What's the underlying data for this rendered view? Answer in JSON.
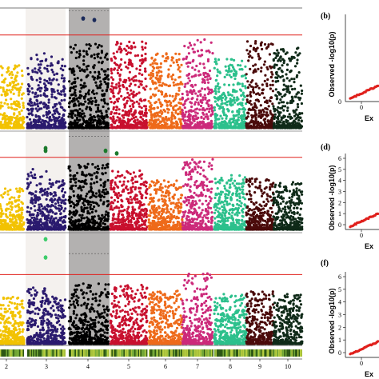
{
  "chart_data": [
    {
      "type": "scatter",
      "subtype": "manhattan",
      "panel": "top",
      "chromosomes": [
        "1",
        "2",
        "3",
        "4",
        "5",
        "6",
        "7",
        "8",
        "9",
        "10"
      ],
      "highlighted_chromosomes": {
        "3": "light",
        "4": "dark"
      },
      "significance_line_y": 6.2,
      "ylim": [
        0,
        8.0
      ],
      "series": [
        {
          "chromosome": "1",
          "color": "#f2c200",
          "peak": 4.2
        },
        {
          "chromosome": "2",
          "color": "#2a1a6e",
          "peak": 5.0
        },
        {
          "chromosome": "3",
          "color": "#2a1a6e",
          "peak": 4.8
        },
        {
          "chromosome": "4",
          "color": "#000000",
          "peak": 5.6
        },
        {
          "chromosome": "5",
          "color": "#c8102e",
          "peak": 5.8
        },
        {
          "chromosome": "6",
          "color": "#ee6a1a",
          "peak": 5.0
        },
        {
          "chromosome": "7",
          "color": "#cc2a7a",
          "peak": 5.9
        },
        {
          "chromosome": "8",
          "color": "#2cc08c",
          "peak": 4.6
        },
        {
          "chromosome": "9",
          "color": "#4a0a0a",
          "peak": 5.8
        },
        {
          "chromosome": "10",
          "color": "#0f2a18",
          "peak": 5.4
        }
      ],
      "significant_points": [
        {
          "chromosome": "4",
          "y": 7.3,
          "color": "#1a2a5a"
        },
        {
          "chromosome": "4",
          "y": 7.2,
          "color": "#1a2a5a"
        }
      ]
    },
    {
      "type": "scatter",
      "subtype": "manhattan",
      "panel": "middle",
      "chromosomes": [
        "1",
        "2",
        "3",
        "4",
        "5",
        "6",
        "7",
        "8",
        "9",
        "10"
      ],
      "significance_line_y": 5.5,
      "ylim": [
        0,
        7.5
      ],
      "series": [
        {
          "chromosome": "1",
          "color": "#f2c200",
          "peak": 3.2
        },
        {
          "chromosome": "2",
          "color": "#2a1a6e",
          "peak": 4.6
        },
        {
          "chromosome": "3",
          "color": "#2a1a6e",
          "peak": 3.8
        },
        {
          "chromosome": "4",
          "color": "#000000",
          "peak": 5.0
        },
        {
          "chromosome": "5",
          "color": "#c8102e",
          "peak": 4.6
        },
        {
          "chromosome": "6",
          "color": "#ee6a1a",
          "peak": 3.8
        },
        {
          "chromosome": "7",
          "color": "#cc2a7a",
          "peak": 5.5
        },
        {
          "chromosome": "8",
          "color": "#2cc08c",
          "peak": 4.2
        },
        {
          "chromosome": "9",
          "color": "#4a0a0a",
          "peak": 3.9
        },
        {
          "chromosome": "10",
          "color": "#0f2a18",
          "peak": 3.6
        }
      ],
      "significant_points": [
        {
          "chromosome": "3",
          "y": 6.2,
          "color": "#1c7a2c"
        },
        {
          "chromosome": "3",
          "y": 6.0,
          "color": "#1c7a2c"
        },
        {
          "chromosome": "4",
          "y": 6.0,
          "color": "#1c7a2c"
        },
        {
          "chromosome": "4",
          "y": 5.8,
          "color": "#1c7a2c"
        }
      ]
    },
    {
      "type": "scatter",
      "subtype": "manhattan",
      "panel": "bottom",
      "chromosomes": [
        "1",
        "2",
        "3",
        "4",
        "5",
        "6",
        "7",
        "8",
        "9",
        "10"
      ],
      "significance_line_y": 5.3,
      "ylim": [
        0,
        8.5
      ],
      "series": [
        {
          "chromosome": "1",
          "color": "#f2c200",
          "peak": 3.6
        },
        {
          "chromosome": "2",
          "color": "#2a1a6e",
          "peak": 4.3
        },
        {
          "chromosome": "3",
          "color": "#2a1a6e",
          "peak": 3.6
        },
        {
          "chromosome": "4",
          "color": "#000000",
          "peak": 4.6
        },
        {
          "chromosome": "5",
          "color": "#c8102e",
          "peak": 4.6
        },
        {
          "chromosome": "6",
          "color": "#ee6a1a",
          "peak": 4.1
        },
        {
          "chromosome": "7",
          "color": "#cc2a7a",
          "peak": 5.5
        },
        {
          "chromosome": "8",
          "color": "#2cc08c",
          "peak": 3.8
        },
        {
          "chromosome": "9",
          "color": "#4a0a0a",
          "peak": 4.0
        },
        {
          "chromosome": "10",
          "color": "#0f2a18",
          "peak": 3.8
        }
      ],
      "significant_points": [
        {
          "chromosome": "3",
          "y": 8.0,
          "color": "#3ccc6a"
        },
        {
          "chromosome": "3",
          "y": 6.6,
          "color": "#3ccc6a"
        }
      ]
    }
  ],
  "x_tick_labels": [
    "2",
    "3",
    "4",
    "5",
    "6",
    "7",
    "8",
    "9",
    "10"
  ],
  "qq_panels": [
    {
      "label": "(b)",
      "ylabel": "Observed -log10(p)",
      "xlabel_partial": "Ex",
      "yticks": [],
      "xtick": "0",
      "ytick": "0"
    },
    {
      "label": "(d)",
      "ylabel": "Observed -log10(p)",
      "xlabel_partial": "Ex",
      "yticks": [
        "0",
        "1",
        "2",
        "3",
        "4",
        "5",
        "6"
      ],
      "xtick": "0"
    },
    {
      "label": "(f)",
      "ylabel": "Observed -log10(p)",
      "xlabel_partial": "Ex",
      "yticks": [
        "0",
        "1",
        "2",
        "3",
        "4",
        "5",
        "6"
      ],
      "xtick": "0"
    }
  ],
  "colors": {
    "threshold": "#e0201c",
    "qq_points": "#e0201c",
    "density_track": "#7ab03a"
  }
}
